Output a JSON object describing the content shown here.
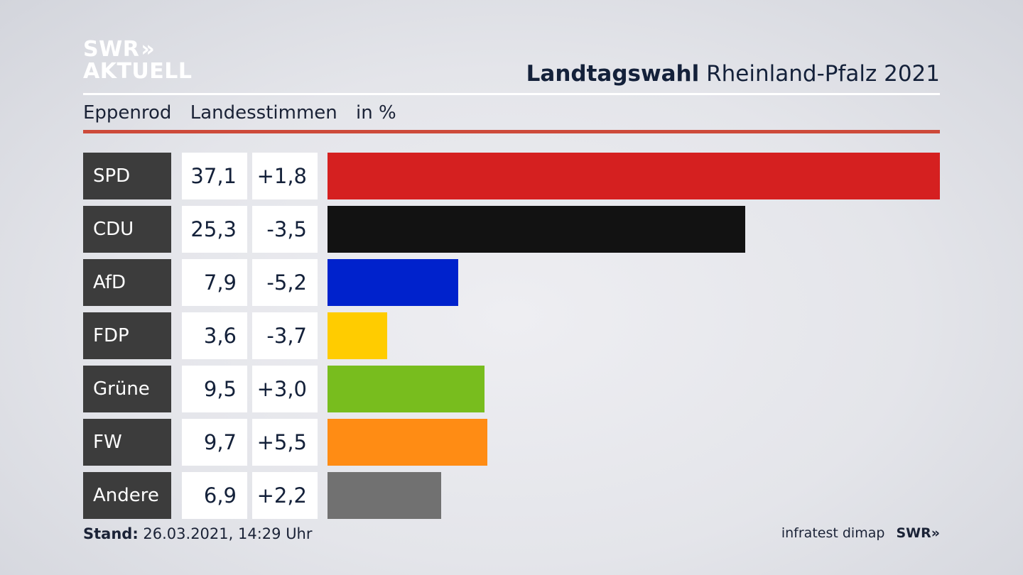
{
  "logo": {
    "line1": "SWR",
    "chevrons": "»",
    "line2": "AKTUELL"
  },
  "header": {
    "title_bold": "Landtagswahl",
    "title_rest": "Rheinland-Pfalz 2021"
  },
  "subheader": {
    "place": "Eppenrod",
    "measure": "Landesstimmen",
    "unit": "in %"
  },
  "colors": {
    "accent_rule": "#cd4a3a",
    "label_bg": "#3c3c3c"
  },
  "chart_data": {
    "type": "bar",
    "orientation": "horizontal",
    "unit": "%",
    "xlim": [
      0,
      37.1
    ],
    "categories": [
      "SPD",
      "CDU",
      "AfD",
      "FDP",
      "Grüne",
      "FW",
      "Andere"
    ],
    "values": [
      37.1,
      25.3,
      7.9,
      3.6,
      9.5,
      9.7,
      6.9
    ],
    "value_labels": [
      "37,1",
      "25,3",
      "7,9",
      "3,6",
      "9,5",
      "9,7",
      "6,9"
    ],
    "changes": [
      1.8,
      -3.5,
      -5.2,
      -3.7,
      3.0,
      5.5,
      2.2
    ],
    "change_labels": [
      "+1,8",
      "-3,5",
      "-5,2",
      "-3,7",
      "+3,0",
      "+5,5",
      "+2,2"
    ],
    "bar_colors": [
      "#d52020",
      "#121212",
      "#0022cc",
      "#ffcc00",
      "#78bd1e",
      "#ff8c14",
      "#717171"
    ]
  },
  "footer": {
    "stand_label": "Stand:",
    "stand_value": "26.03.2021, 14:29 Uhr",
    "source": "infratest dimap",
    "brand": "SWR»"
  }
}
